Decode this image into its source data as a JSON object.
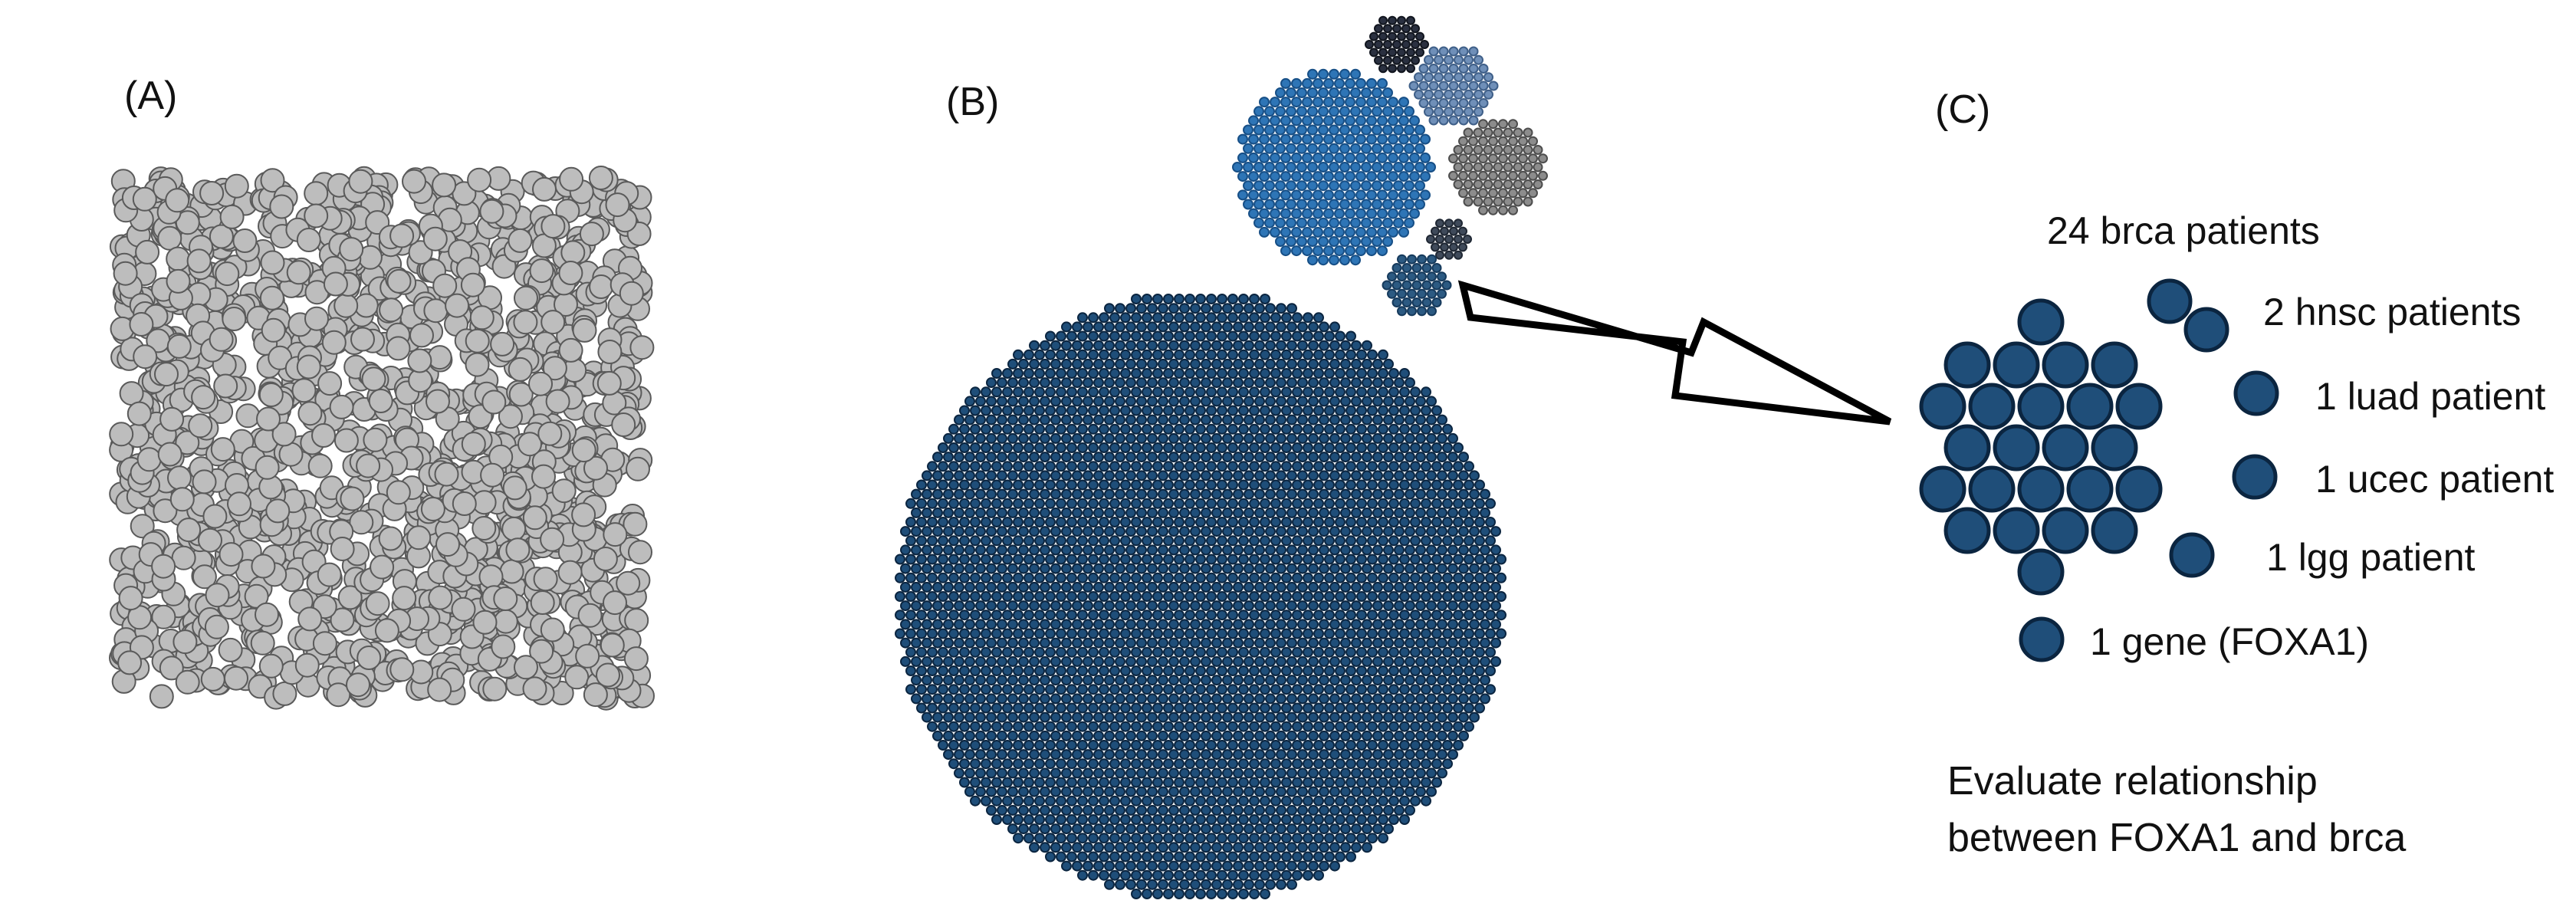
{
  "panels": {
    "a": {
      "label": "(A)"
    },
    "b": {
      "label": "(B)"
    },
    "c": {
      "label": "(C)"
    }
  },
  "legend": [
    {
      "count": 24,
      "text": "24 brca patients"
    },
    {
      "count": 2,
      "text": "2 hnsc patients"
    },
    {
      "count": 1,
      "text": "1 luad patient"
    },
    {
      "count": 1,
      "text": "1 ucec patient"
    },
    {
      "count": 1,
      "text": "1 lgg patient"
    },
    {
      "count": 1,
      "text": "1 gene (FOXA1)"
    }
  ],
  "note": {
    "line1": "Evaluate relationship",
    "line2": "between FOXA1 and brca"
  },
  "colors": {
    "gray_fill": "#bdbdbd",
    "gray_stroke": "#5a5a5a",
    "navy_fill": "#1f4e79",
    "navy_stroke": "#0b2540",
    "blue_fill": "#2e75b6",
    "steel_fill": "#6f8fb8",
    "dark_fill": "#2a3040",
    "mid_gray_fill": "#8c8c8c",
    "slate_fill": "#3f4a5a",
    "teal_navy_fill": "#2c5a82",
    "arrow_stroke": "#000000"
  }
}
